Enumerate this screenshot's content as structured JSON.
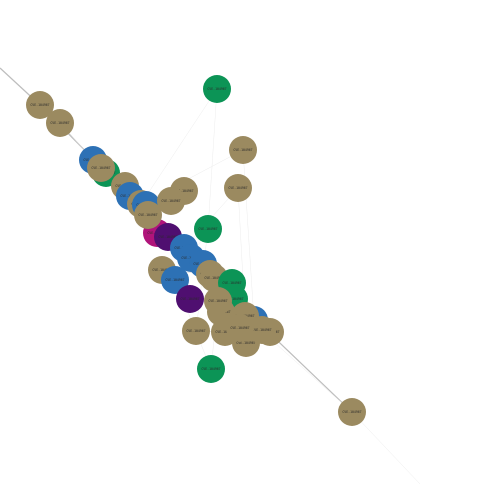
{
  "graph": {
    "colors": {
      "tan": "#9b8a60",
      "blue": "#2d71b5",
      "green": "#0c9456",
      "purple": "#4f0f70",
      "magenta": "#b0147a"
    },
    "nodes": [
      {
        "id": "n1",
        "color": "tan",
        "label": "CVE-104967"
      },
      {
        "id": "n2",
        "color": "tan",
        "label": "CVE-104967"
      },
      {
        "id": "n3",
        "color": "green",
        "label": "CVE-104967"
      },
      {
        "id": "n4",
        "color": "tan",
        "label": "CVE-104967"
      },
      {
        "id": "n5",
        "color": "tan",
        "label": "CVE-104967"
      },
      {
        "id": "n6",
        "color": "blue",
        "label": "CVE-104967"
      },
      {
        "id": "n7",
        "color": "green",
        "label": "CVE-104967"
      },
      {
        "id": "n8",
        "color": "tan",
        "label": "CVE-104967"
      },
      {
        "id": "n9",
        "color": "tan",
        "label": "CVE-104967"
      },
      {
        "id": "n10",
        "color": "blue",
        "label": "CVE-104967"
      },
      {
        "id": "n11",
        "color": "tan",
        "label": "CVE-104967"
      },
      {
        "id": "n12",
        "color": "tan",
        "label": "CVE-104967"
      },
      {
        "id": "n13",
        "color": "blue",
        "label": "CVE-104967"
      },
      {
        "id": "n14",
        "color": "tan",
        "label": "CVE-104967"
      },
      {
        "id": "n15",
        "color": "green",
        "label": "CVE-104967"
      },
      {
        "id": "n16",
        "color": "magenta",
        "label": "CVE-104967"
      },
      {
        "id": "n17",
        "color": "purple",
        "label": "CVE-104967"
      },
      {
        "id": "n18",
        "color": "tan",
        "label": "CVE-104967"
      },
      {
        "id": "n19",
        "color": "blue",
        "label": "CVE-104967"
      },
      {
        "id": "n20",
        "color": "blue",
        "label": "CVE-104967"
      },
      {
        "id": "n21",
        "color": "blue",
        "label": "CVE-104967"
      },
      {
        "id": "n22",
        "color": "tan",
        "label": "CVE-104967"
      },
      {
        "id": "n23",
        "color": "blue",
        "label": "CVE-104967"
      },
      {
        "id": "n24",
        "color": "tan",
        "label": "CVE-104967"
      },
      {
        "id": "n25",
        "color": "tan",
        "label": "CVE-104967"
      },
      {
        "id": "n26",
        "color": "green",
        "label": "CVE-104967"
      },
      {
        "id": "n27",
        "color": "purple",
        "label": "CVE-104967"
      },
      {
        "id": "n28",
        "color": "green",
        "label": "CVE-104967"
      },
      {
        "id": "n29",
        "color": "tan",
        "label": "CVE-104967"
      },
      {
        "id": "n30",
        "color": "tan",
        "label": "CVE-104967"
      },
      {
        "id": "n31",
        "color": "tan",
        "label": "CVE-104967"
      },
      {
        "id": "n32",
        "color": "blue",
        "label": "CVE-104967"
      },
      {
        "id": "n33",
        "color": "tan",
        "label": "CVE-104967"
      },
      {
        "id": "n34",
        "color": "tan",
        "label": "CVE-104967"
      },
      {
        "id": "n35",
        "color": "tan",
        "label": "CVE-104967"
      },
      {
        "id": "n36",
        "color": "tan",
        "label": "CVE-104967"
      },
      {
        "id": "n37",
        "color": "green",
        "label": "CVE-104967"
      },
      {
        "id": "n38",
        "color": "tan",
        "label": "CVE-104967"
      },
      {
        "id": "n39",
        "color": "tan",
        "label": "CVE-104967"
      },
      {
        "id": "n40",
        "color": "tan",
        "label": "CVE-104967"
      }
    ],
    "edges": [
      {
        "source": "n1",
        "target": "n20",
        "weight": "strong"
      },
      {
        "source": "n20",
        "target": "n40",
        "weight": "strong"
      },
      {
        "source": "n2",
        "target": "n6",
        "weight": "normal"
      },
      {
        "source": "n3",
        "target": "n12",
        "weight": "faint"
      },
      {
        "source": "n3",
        "target": "n15",
        "weight": "faint"
      },
      {
        "source": "n4",
        "target": "n12",
        "weight": "faint"
      },
      {
        "source": "n5",
        "target": "n19",
        "weight": "faint"
      },
      {
        "source": "n5",
        "target": "n33",
        "weight": "faint"
      },
      {
        "source": "n6",
        "target": "n8",
        "weight": "normal"
      },
      {
        "source": "n8",
        "target": "n10",
        "weight": "normal"
      },
      {
        "source": "n10",
        "target": "n13",
        "weight": "normal"
      },
      {
        "source": "n13",
        "target": "n16",
        "weight": "normal"
      },
      {
        "source": "n16",
        "target": "n19",
        "weight": "normal"
      },
      {
        "source": "n19",
        "target": "n21",
        "weight": "normal"
      },
      {
        "source": "n21",
        "target": "n26",
        "weight": "normal"
      },
      {
        "source": "n26",
        "target": "n29",
        "weight": "normal"
      },
      {
        "source": "n29",
        "target": "n32",
        "weight": "normal"
      },
      {
        "source": "n32",
        "target": "n36",
        "weight": "normal"
      },
      {
        "source": "n32",
        "target": "n38",
        "weight": "normal"
      },
      {
        "source": "n15",
        "target": "n20",
        "weight": "faint"
      },
      {
        "source": "n15",
        "target": "n31",
        "weight": "faint"
      },
      {
        "source": "n17",
        "target": "n20",
        "weight": "normal"
      },
      {
        "source": "n27",
        "target": "n23",
        "weight": "normal"
      },
      {
        "source": "n37",
        "target": "n30",
        "weight": "faint"
      },
      {
        "source": "n37",
        "target": "n23",
        "weight": "faint"
      },
      {
        "source": "n28",
        "target": "n32",
        "weight": "normal"
      },
      {
        "source": "n9",
        "target": "n14",
        "weight": "normal"
      },
      {
        "source": "n11",
        "target": "n18",
        "weight": "normal"
      },
      {
        "source": "n22",
        "target": "n24",
        "weight": "normal"
      },
      {
        "source": "n25",
        "target": "n29",
        "weight": "normal"
      },
      {
        "source": "n31",
        "target": "n34",
        "weight": "normal"
      },
      {
        "source": "n35",
        "target": "n39",
        "weight": "normal"
      },
      {
        "source": "n7",
        "target": "n10",
        "weight": "normal"
      },
      {
        "source": "n33",
        "target": "n40",
        "weight": "faint"
      },
      {
        "source": "n4",
        "target": "n32",
        "weight": "faint"
      }
    ]
  }
}
